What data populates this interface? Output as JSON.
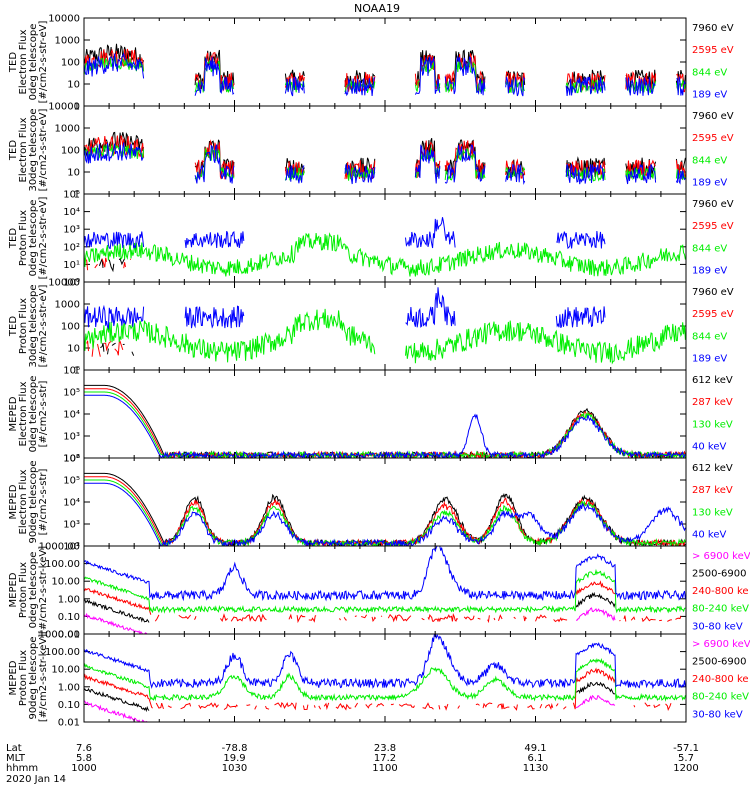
{
  "chart_data": {
    "type": "line",
    "title": "NOAA19",
    "colors": {
      "black": "#000000",
      "red": "#ff0000",
      "green": "#00ee00",
      "blue": "#0000ff",
      "magenta": "#ff00ff"
    },
    "panels": [
      {
        "ylabel": [
          "TED",
          "Electron Flux",
          "0deg telescope",
          "[#/cm2-s-str-eV]"
        ],
        "scale": "log",
        "ylim": [
          1,
          10000
        ],
        "ytick_labels": [
          "10000",
          "1000",
          "100",
          "10",
          "1"
        ],
        "channels": [
          {
            "label": "7960 eV",
            "color": "#000000"
          },
          {
            "label": "2595 eV",
            "color": "#ff0000"
          },
          {
            "label": "844 eV",
            "color": "#00ee00"
          },
          {
            "label": "189 eV",
            "color": "#0000ff"
          }
        ]
      },
      {
        "ylabel": [
          "TED",
          "Electron Flux",
          "30deg telescope",
          "[#/cm2-s-str-eV]"
        ],
        "scale": "log",
        "ylim": [
          1,
          10000
        ],
        "ytick_labels": [
          "10000",
          "1000",
          "100",
          "10",
          "1"
        ],
        "channels": [
          {
            "label": "7960 eV",
            "color": "#000000"
          },
          {
            "label": "2595 eV",
            "color": "#ff0000"
          },
          {
            "label": "844 eV",
            "color": "#00ee00"
          },
          {
            "label": "189 eV",
            "color": "#0000ff"
          }
        ]
      },
      {
        "ylabel": [
          "TED",
          "Proton Flux",
          "0deg telescope",
          "[#/cm2-s-str-eV]"
        ],
        "scale": "log",
        "ylim": [
          1,
          100000
        ],
        "ytick_labels": [
          "10⁵",
          "10⁴",
          "10³",
          "10²",
          "10¹",
          "10⁰"
        ],
        "channels": [
          {
            "label": "7960 eV",
            "color": "#000000"
          },
          {
            "label": "2595 eV",
            "color": "#ff0000"
          },
          {
            "label": "844 eV",
            "color": "#00ee00"
          },
          {
            "label": "189 eV",
            "color": "#0000ff"
          }
        ]
      },
      {
        "ylabel": [
          "TED",
          "Proton Flux",
          "30deg telescope",
          "[#/cm2-s-str-eV]"
        ],
        "scale": "log",
        "ylim": [
          1,
          10000
        ],
        "ytick_labels": [
          "10000",
          "1000",
          "100",
          "10",
          "1"
        ],
        "channels": [
          {
            "label": "7960 eV",
            "color": "#000000"
          },
          {
            "label": "2595 eV",
            "color": "#ff0000"
          },
          {
            "label": "844 eV",
            "color": "#00ee00"
          },
          {
            "label": "189 eV",
            "color": "#0000ff"
          }
        ]
      },
      {
        "ylabel": [
          "MEPED",
          "Electron Flux",
          "0deg telescope",
          "[#/cm2-s-str]"
        ],
        "scale": "log",
        "ylim": [
          100,
          1000000
        ],
        "ytick_labels": [
          "10⁶",
          "10⁵",
          "10⁴",
          "10³",
          "10²"
        ],
        "channels": [
          {
            "label": "612 keV",
            "color": "#000000"
          },
          {
            "label": "287 keV",
            "color": "#ff0000"
          },
          {
            "label": "130 keV",
            "color": "#00ee00"
          },
          {
            "label": "40 keV",
            "color": "#0000ff"
          }
        ]
      },
      {
        "ylabel": [
          "MEPED",
          "Electron Flux",
          "90deg telescope",
          "[#/cm2-s-str]"
        ],
        "scale": "log",
        "ylim": [
          100,
          1000000
        ],
        "ytick_labels": [
          "10⁶",
          "10⁵",
          "10⁴",
          "10³",
          "10²"
        ],
        "channels": [
          {
            "label": "612 keV",
            "color": "#000000"
          },
          {
            "label": "287 keV",
            "color": "#ff0000"
          },
          {
            "label": "130 keV",
            "color": "#00ee00"
          },
          {
            "label": "40 keV",
            "color": "#0000ff"
          }
        ]
      },
      {
        "ylabel": [
          "MEPED",
          "Proton Flux",
          "0deg telescope",
          "[#/cm2-s-str-keV]"
        ],
        "scale": "log",
        "ylim": [
          0.01,
          1000
        ],
        "ytick_labels": [
          "1000.00",
          "100.00",
          "10.00",
          "1.00",
          "0.10",
          "0.01"
        ],
        "channels": [
          {
            "label": "> 6900 keV",
            "color": "#ff00ff"
          },
          {
            "label": "2500-6900",
            "color": "#000000"
          },
          {
            "label": "240-800 ke",
            "color": "#ff0000"
          },
          {
            "label": "80-240 keV",
            "color": "#00ee00"
          },
          {
            "label": "30-80 keV",
            "color": "#0000ff"
          }
        ]
      },
      {
        "ylabel": [
          "MEPED",
          "Proton Flux",
          "90deg telescope",
          "[#/cm2-s-str-keV]"
        ],
        "scale": "log",
        "ylim": [
          0.01,
          1000
        ],
        "ytick_labels": [
          "1000.00",
          "100.00",
          "10.00",
          "1.00",
          "0.10",
          "0.01"
        ],
        "channels": [
          {
            "label": "> 6900 keV",
            "color": "#ff00ff"
          },
          {
            "label": "2500-6900",
            "color": "#000000"
          },
          {
            "label": "240-800 ke",
            "color": "#ff0000"
          },
          {
            "label": "80-240 keV",
            "color": "#00ee00"
          },
          {
            "label": "30-80 keV",
            "color": "#0000ff"
          }
        ]
      }
    ],
    "x_axis": {
      "row_labels": [
        "Lat",
        "MLT",
        "hhmm"
      ],
      "date": "2020 Jan 14",
      "ticks": [
        {
          "lat": "7.6",
          "mlt": "5.8",
          "hhmm": "1000"
        },
        {
          "lat": "-78.8",
          "mlt": "19.9",
          "hhmm": "1030"
        },
        {
          "lat": "23.8",
          "mlt": "17.2",
          "hhmm": "1100"
        },
        {
          "lat": "49.1",
          "mlt": "6.1",
          "hhmm": "1130"
        },
        {
          "lat": "-57.1",
          "mlt": "5.7",
          "hhmm": "1200"
        }
      ],
      "time_range_minutes": [
        0,
        120
      ]
    }
  }
}
